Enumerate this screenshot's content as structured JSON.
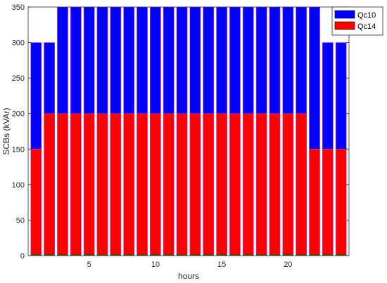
{
  "chart_data": {
    "type": "bar",
    "stacked": true,
    "x": [
      1,
      2,
      3,
      4,
      5,
      6,
      7,
      8,
      9,
      10,
      11,
      12,
      13,
      14,
      15,
      16,
      17,
      18,
      19,
      20,
      21,
      22,
      23,
      24
    ],
    "series": [
      {
        "name": "Qc14",
        "color": "#ff0000",
        "values": [
          150,
          200,
          200,
          200,
          200,
          200,
          200,
          200,
          200,
          200,
          200,
          200,
          200,
          200,
          200,
          200,
          200,
          200,
          200,
          200,
          200,
          150,
          150,
          150
        ]
      },
      {
        "name": "Qc10",
        "color": "#0000ff",
        "values": [
          150,
          100,
          150,
          150,
          150,
          150,
          150,
          150,
          150,
          150,
          150,
          150,
          150,
          150,
          150,
          150,
          150,
          150,
          150,
          150,
          150,
          200,
          150,
          150
        ]
      }
    ],
    "xlabel": "hours",
    "ylabel": "SCBs (kVAr)",
    "xlim": [
      0.4,
      24.6
    ],
    "ylim": [
      0,
      350
    ],
    "xticks": [
      5,
      10,
      15,
      20
    ],
    "yticks": [
      0,
      50,
      100,
      150,
      200,
      250,
      300,
      350
    ],
    "legend_position": "top-right",
    "grid": false,
    "bar_edge_color": "#cc33cc"
  }
}
